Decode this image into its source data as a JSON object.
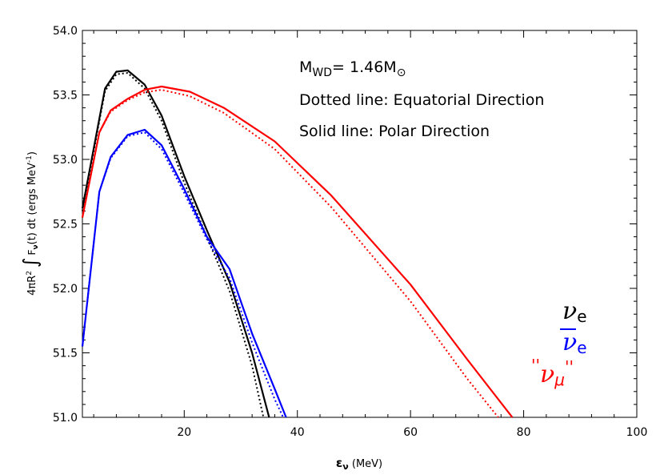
{
  "chart_data": {
    "type": "line",
    "xlim": [
      2,
      100
    ],
    "ylim": [
      51.0,
      54.0
    ],
    "x_ticks": [
      20,
      40,
      60,
      80,
      100
    ],
    "y_ticks": [
      51.0,
      51.5,
      52.0,
      52.5,
      53.0,
      53.5,
      54.0
    ],
    "x_tick_labels": [
      "20",
      "40",
      "60",
      "80",
      "100"
    ],
    "y_tick_labels": [
      "51.0",
      "51.5",
      "52.0",
      "52.5",
      "53.0",
      "53.5",
      "54.0"
    ],
    "xlabel": {
      "symbol": "ε",
      "sub": "ν",
      "rest": " (MeV)"
    },
    "ylabel": {
      "prefix": "4πR",
      "sup": "2",
      "integral": "∫",
      "f": "F",
      "f_sub": "ν",
      "mid": "(t)  dt  (ergs MeV",
      "unit_sup": "-1",
      "close": ")"
    },
    "annotations": {
      "mass": {
        "m": "M",
        "sub": "WD",
        "value": "= 1.46M",
        "sun": "⊙"
      },
      "dotted": "Dotted line: Equatorial Direction",
      "solid": "Solid line: Polar Direction"
    },
    "legend": [
      {
        "nu": "ν",
        "sub": "e",
        "bar": false,
        "quoted": false,
        "color": "#000000"
      },
      {
        "nu": "ν",
        "sub": "e",
        "bar": true,
        "quoted": false,
        "color": "#0000ff"
      },
      {
        "nu": "ν",
        "sub": "μ",
        "bar": false,
        "quoted": true,
        "quote": "''",
        "color": "#ff0000"
      }
    ],
    "series": [
      {
        "color": "#000000",
        "style": "solid",
        "x": [
          2,
          6,
          8,
          10,
          13,
          16,
          20,
          24,
          28,
          32,
          35
        ],
        "y": [
          52.62,
          53.55,
          53.68,
          53.69,
          53.58,
          53.34,
          52.87,
          52.45,
          52.05,
          51.5,
          51.0
        ]
      },
      {
        "color": "#000000",
        "style": "dotted",
        "x": [
          2,
          6,
          8,
          10,
          13,
          16,
          20,
          24,
          28,
          32,
          34
        ],
        "y": [
          52.6,
          53.53,
          53.66,
          53.67,
          53.55,
          53.3,
          52.82,
          52.4,
          51.98,
          51.4,
          51.0
        ]
      },
      {
        "color": "#0000ff",
        "style": "solid",
        "x": [
          2,
          5,
          7,
          10,
          13,
          16,
          20,
          24,
          28,
          32,
          36,
          38
        ],
        "y": [
          51.55,
          52.75,
          53.02,
          53.19,
          53.23,
          53.11,
          52.77,
          52.4,
          52.15,
          51.65,
          51.22,
          51.0
        ]
      },
      {
        "color": "#0000ff",
        "style": "dotted",
        "x": [
          2,
          5,
          7,
          10,
          13,
          16,
          20,
          24,
          28,
          32,
          36,
          37.5
        ],
        "y": [
          51.55,
          52.75,
          53.01,
          53.18,
          53.21,
          53.08,
          52.74,
          52.38,
          52.08,
          51.58,
          51.14,
          51.0
        ]
      },
      {
        "color": "#ff0000",
        "style": "solid",
        "x": [
          2,
          5,
          7,
          10,
          13,
          16,
          21,
          27,
          36,
          46,
          60,
          70,
          78
        ],
        "y": [
          52.55,
          53.21,
          53.38,
          53.47,
          53.54,
          53.565,
          53.525,
          53.4,
          53.14,
          52.72,
          52.03,
          51.45,
          51.0
        ]
      },
      {
        "color": "#ff0000",
        "style": "dotted",
        "x": [
          2,
          5,
          7,
          10,
          13,
          16,
          21,
          27,
          36,
          46,
          60,
          70,
          75.5
        ],
        "y": [
          52.55,
          53.21,
          53.37,
          53.46,
          53.52,
          53.54,
          53.49,
          53.36,
          53.08,
          52.63,
          51.9,
          51.3,
          51.0
        ]
      }
    ]
  }
}
